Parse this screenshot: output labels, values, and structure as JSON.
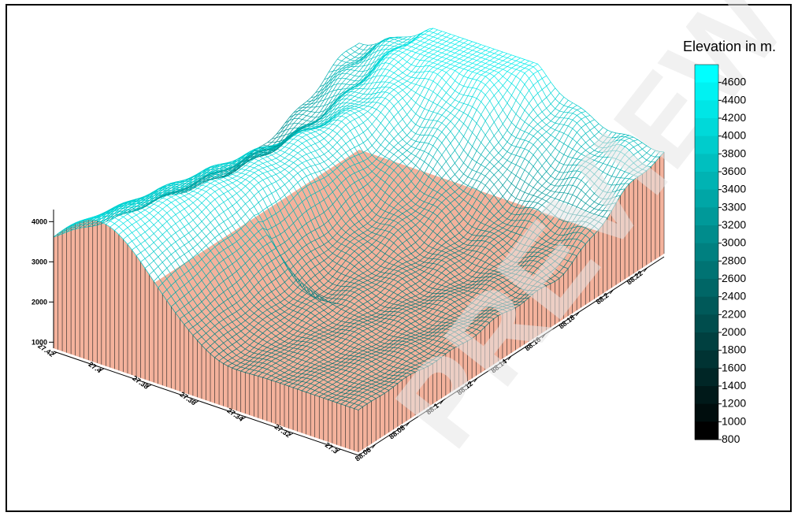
{
  "surface": {
    "z_ticks": [
      1000,
      2000,
      3000,
      4000
    ],
    "lat_ticks": [
      27.42,
      27.4,
      27.38,
      27.36,
      27.34,
      27.32,
      27.3
    ],
    "lon_ticks": [
      88.06,
      88.08,
      88.1,
      88.12,
      88.14,
      88.16,
      88.18,
      88.2,
      88.22
    ]
  },
  "colorbar": {
    "title": "Elevation in m.",
    "ticks": [
      4600,
      4400,
      4200,
      4000,
      3800,
      3600,
      3400,
      3300,
      3200,
      3000,
      2800,
      2600,
      2400,
      2200,
      2000,
      1800,
      1600,
      1400,
      1200,
      1000,
      800
    ],
    "colors": [
      "#000000",
      "#00ffff"
    ]
  },
  "watermark": "PREVIEW"
}
